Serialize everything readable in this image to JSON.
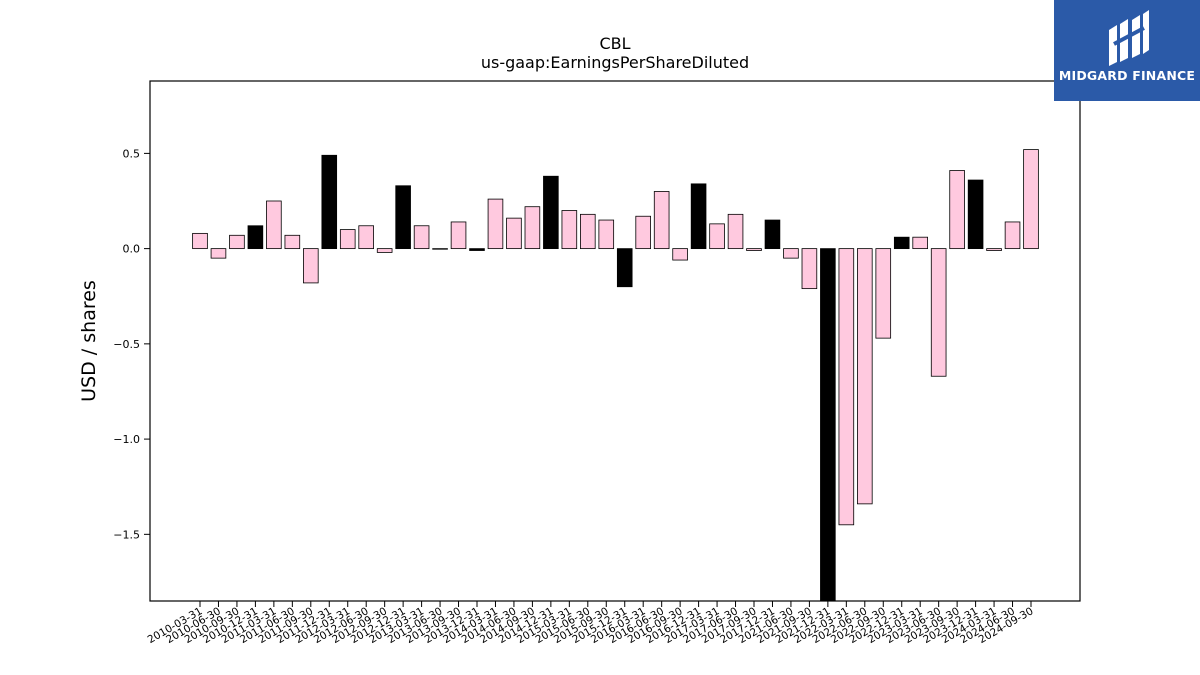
{
  "chart_data": {
    "type": "bar",
    "title": "CBL",
    "subtitle": "us-gaap:EarningsPerShareDiluted",
    "xlabel": "",
    "ylabel": "USD / shares",
    "ylim": [
      -1.85,
      0.88
    ],
    "yticks": [
      0.5,
      0.0,
      -0.5,
      -1.0,
      -1.5
    ],
    "ytick_labels": [
      "0.5",
      "0.0",
      "−0.5",
      "−1.0",
      "−1.5"
    ],
    "grid": false,
    "categories": [
      "2010-03-31",
      "2010-06-30",
      "2010-09-30",
      "2010-12-31",
      "2011-03-31",
      "2011-06-30",
      "2011-09-30",
      "2011-12-31",
      "2012-03-31",
      "2012-06-30",
      "2012-09-30",
      "2012-12-31",
      "2013-03-31",
      "2013-06-30",
      "2013-09-30",
      "2013-12-31",
      "2014-03-31",
      "2014-06-30",
      "2014-09-30",
      "2014-12-31",
      "2015-03-31",
      "2015-06-30",
      "2015-09-30",
      "2015-12-31",
      "2016-03-31",
      "2016-06-30",
      "2016-09-30",
      "2016-12-31",
      "2017-03-31",
      "2017-06-30",
      "2017-09-30",
      "2017-12-31",
      "2021-06-30",
      "2021-09-30",
      "2021-12-31",
      "2022-03-31",
      "2022-06-30",
      "2022-09-30",
      "2022-12-31",
      "2023-03-31",
      "2023-06-30",
      "2023-09-30",
      "2023-12-31",
      "2024-03-31",
      "2024-06-30",
      "2024-09-30"
    ],
    "values": [
      0.08,
      -0.05,
      0.07,
      0.12,
      0.25,
      0.07,
      -0.18,
      0.49,
      0.1,
      0.12,
      -0.02,
      0.33,
      0.12,
      0.0,
      0.14,
      -0.01,
      0.26,
      0.16,
      0.22,
      0.38,
      0.2,
      0.18,
      0.15,
      -0.2,
      0.17,
      0.3,
      -0.06,
      0.34,
      0.13,
      0.18,
      -0.01,
      0.15,
      -0.05,
      -0.21,
      -1.85,
      -1.45,
      -1.34,
      -0.47,
      0.06,
      0.06,
      -0.67,
      0.41,
      0.36,
      -0.01,
      0.14,
      0.52
    ],
    "highlight": [
      false,
      false,
      false,
      true,
      false,
      false,
      false,
      true,
      false,
      false,
      false,
      true,
      false,
      false,
      false,
      true,
      false,
      false,
      false,
      true,
      false,
      false,
      false,
      true,
      false,
      false,
      false,
      true,
      false,
      false,
      false,
      true,
      false,
      false,
      true,
      false,
      false,
      false,
      true,
      false,
      false,
      false,
      true,
      false,
      false,
      false
    ],
    "colors": {
      "normal": "#ffc9df",
      "highlight": "#000000",
      "edge": "#000000"
    }
  },
  "logo": {
    "text": "MIDGARD FINANCE",
    "icon": "midgard-logo-icon",
    "background": "#2b5aa8"
  }
}
